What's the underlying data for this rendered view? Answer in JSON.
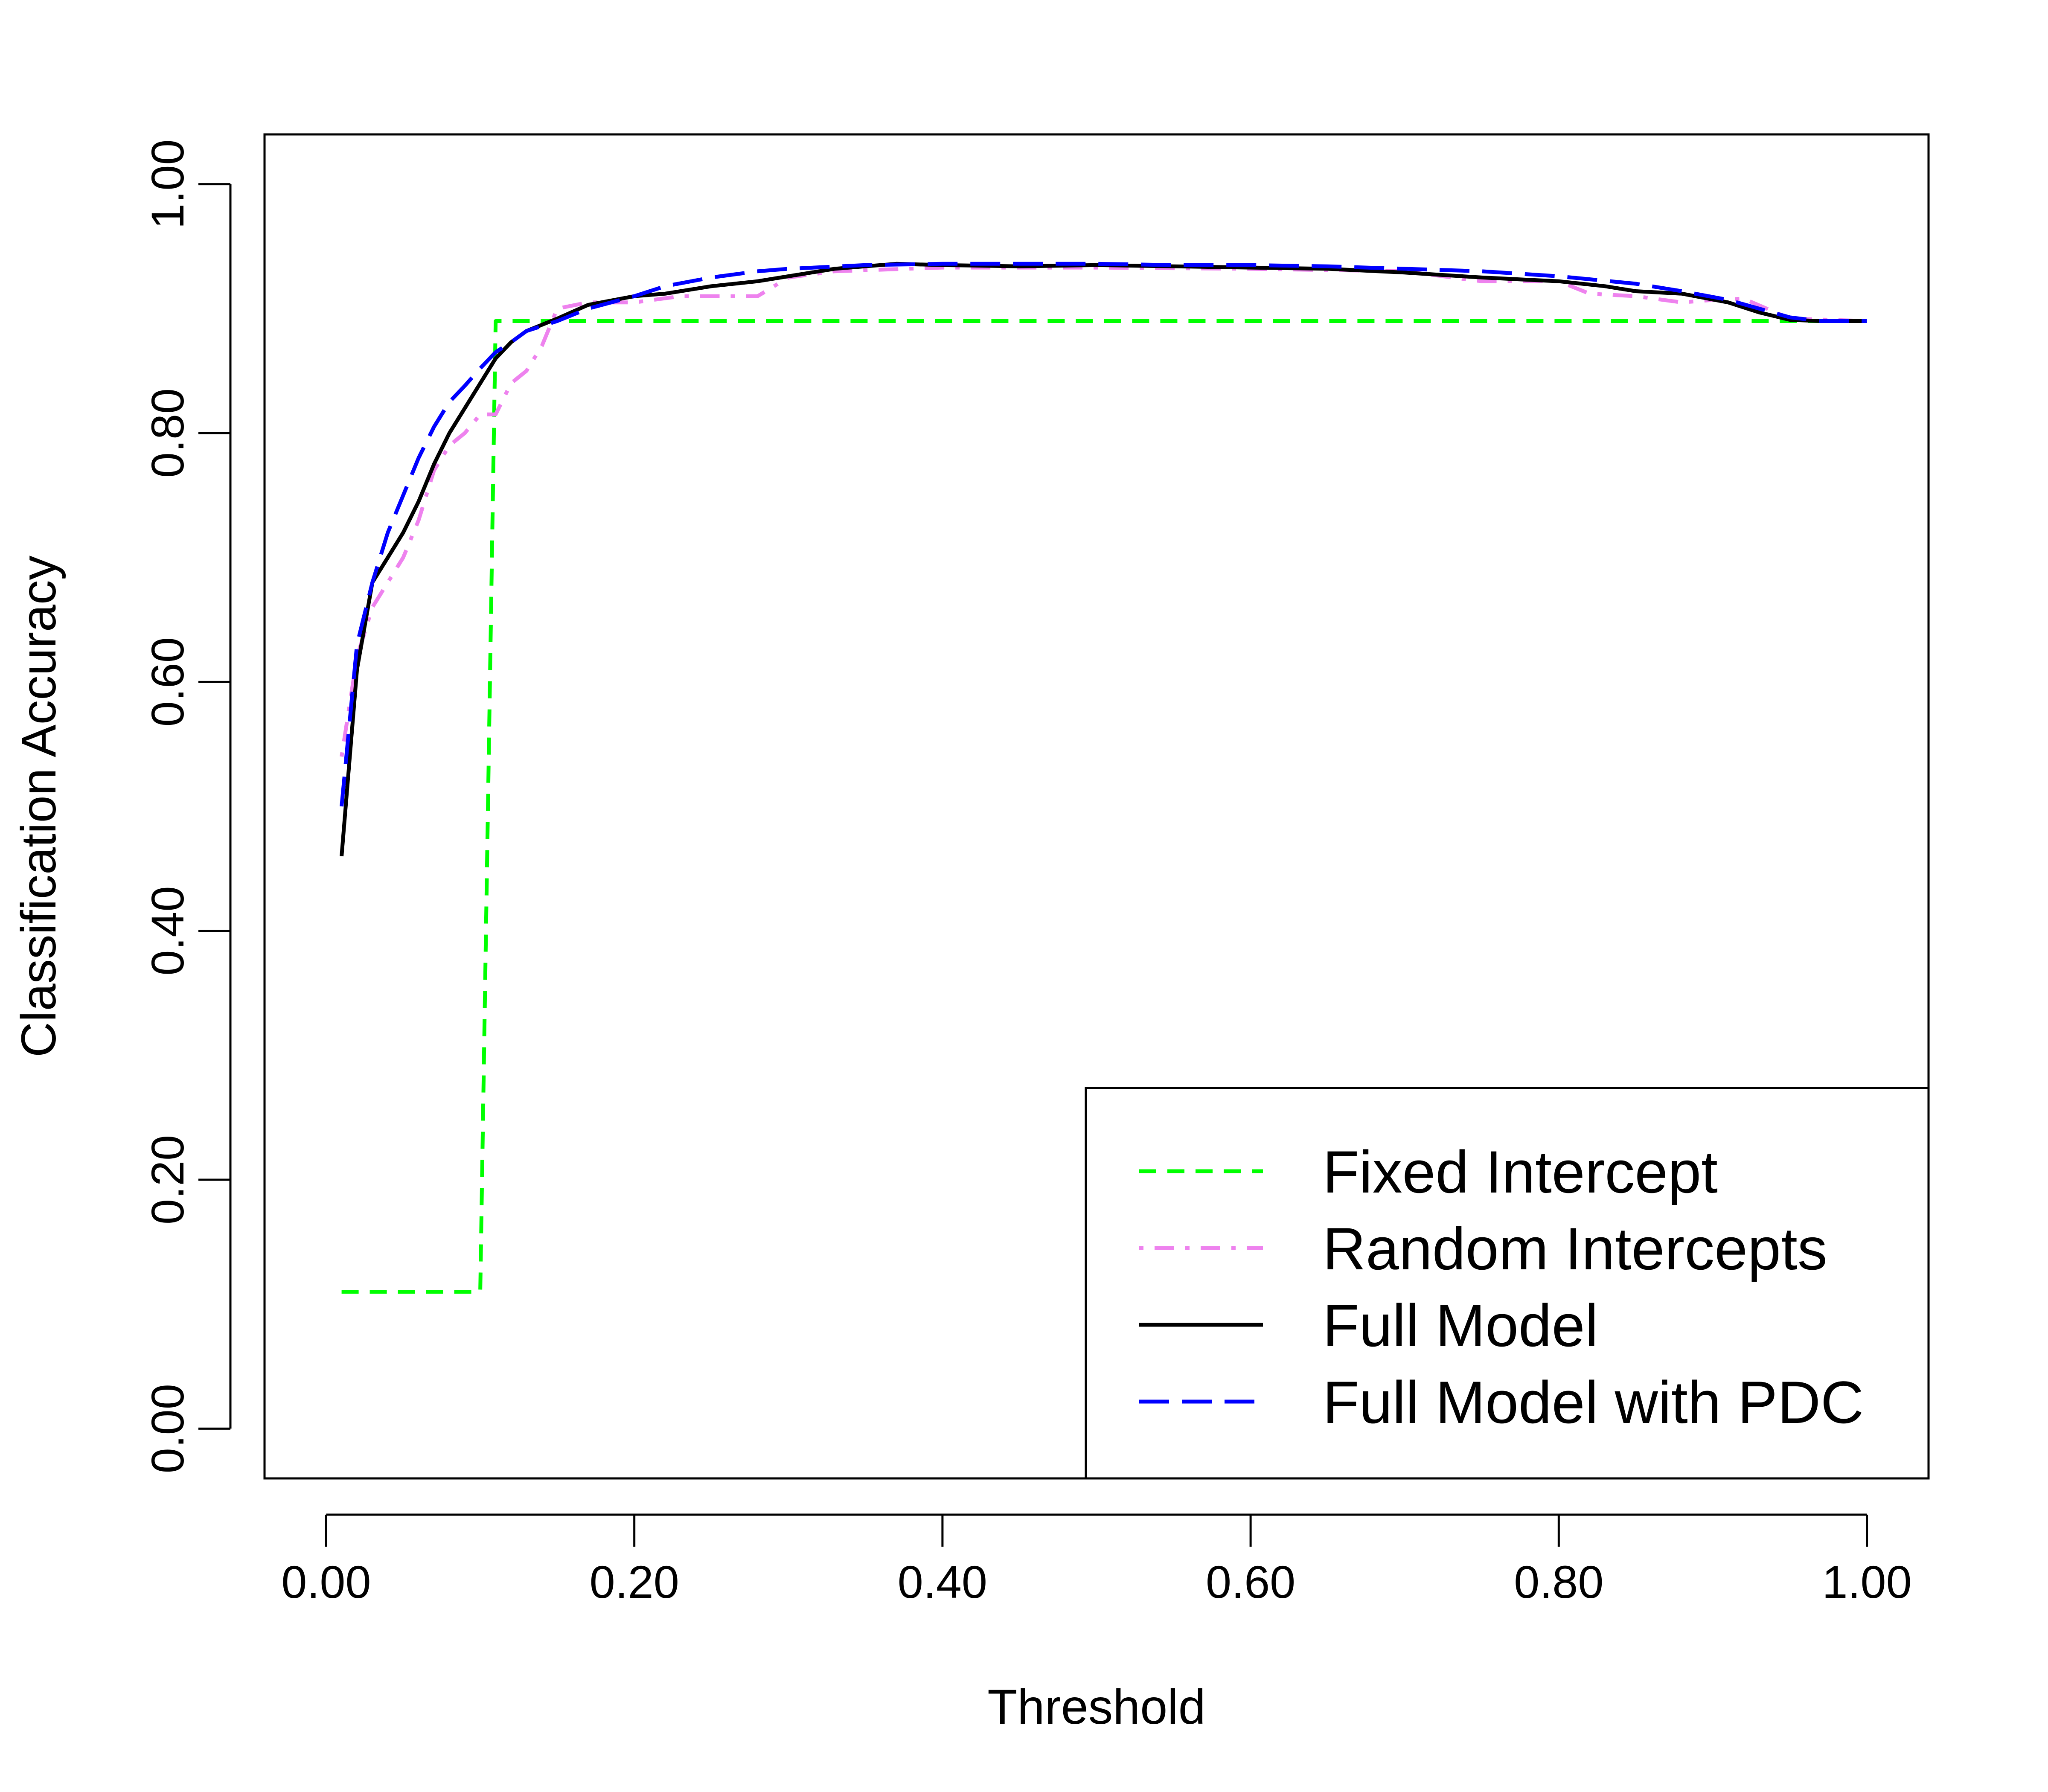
{
  "chart_data": {
    "type": "line",
    "title": "",
    "xlabel": "Threshold",
    "ylabel": "Classification Accuracy",
    "xlim": [
      -0.04,
      1.04
    ],
    "ylim": [
      -0.04,
      1.04
    ],
    "xticks": [
      0.0,
      0.2,
      0.4,
      0.6,
      0.8,
      1.0
    ],
    "xtick_labels": [
      "0.00",
      "0.20",
      "0.40",
      "0.60",
      "0.80",
      "1.00"
    ],
    "yticks": [
      0.0,
      0.2,
      0.4,
      0.6,
      0.8,
      1.0
    ],
    "ytick_labels": [
      "0.00",
      "0.20",
      "0.40",
      "0.60",
      "0.80",
      "1.00"
    ],
    "grid": false,
    "legend_position": "bottom-right",
    "series": [
      {
        "name": "Fixed Intercept",
        "color": "#00ff00",
        "dash": "dashed",
        "points": [
          [
            0.01,
            0.11
          ],
          [
            0.1,
            0.11
          ],
          [
            0.1,
            0.11
          ],
          [
            0.11,
            0.89
          ],
          [
            1.0,
            0.89
          ]
        ]
      },
      {
        "name": "Random Intercepts",
        "color": "#ee82ee",
        "dash": "dotdash",
        "points": [
          [
            0.01,
            0.54
          ],
          [
            0.02,
            0.62
          ],
          [
            0.03,
            0.66
          ],
          [
            0.04,
            0.68
          ],
          [
            0.05,
            0.7
          ],
          [
            0.06,
            0.73
          ],
          [
            0.07,
            0.77
          ],
          [
            0.08,
            0.79
          ],
          [
            0.09,
            0.8
          ],
          [
            0.1,
            0.815
          ],
          [
            0.11,
            0.815
          ],
          [
            0.12,
            0.84
          ],
          [
            0.13,
            0.85
          ],
          [
            0.14,
            0.87
          ],
          [
            0.15,
            0.9
          ],
          [
            0.17,
            0.905
          ],
          [
            0.2,
            0.905
          ],
          [
            0.23,
            0.91
          ],
          [
            0.28,
            0.91
          ],
          [
            0.3,
            0.925
          ],
          [
            0.33,
            0.93
          ],
          [
            0.4,
            0.933
          ],
          [
            0.5,
            0.933
          ],
          [
            0.6,
            0.932
          ],
          [
            0.7,
            0.93
          ],
          [
            0.75,
            0.922
          ],
          [
            0.8,
            0.922
          ],
          [
            0.82,
            0.912
          ],
          [
            0.85,
            0.91
          ],
          [
            0.88,
            0.905
          ],
          [
            0.9,
            0.907
          ],
          [
            0.92,
            0.908
          ],
          [
            0.95,
            0.892
          ],
          [
            1.0,
            0.89
          ]
        ]
      },
      {
        "name": "Full Model",
        "color": "#000000",
        "dash": "solid",
        "points": [
          [
            0.01,
            0.46
          ],
          [
            0.02,
            0.61
          ],
          [
            0.03,
            0.68
          ],
          [
            0.04,
            0.7
          ],
          [
            0.05,
            0.72
          ],
          [
            0.06,
            0.745
          ],
          [
            0.07,
            0.775
          ],
          [
            0.08,
            0.8
          ],
          [
            0.09,
            0.82
          ],
          [
            0.1,
            0.84
          ],
          [
            0.11,
            0.86
          ],
          [
            0.12,
            0.873
          ],
          [
            0.13,
            0.882
          ],
          [
            0.15,
            0.892
          ],
          [
            0.17,
            0.903
          ],
          [
            0.2,
            0.91
          ],
          [
            0.22,
            0.912
          ],
          [
            0.25,
            0.918
          ],
          [
            0.28,
            0.922
          ],
          [
            0.3,
            0.926
          ],
          [
            0.33,
            0.932
          ],
          [
            0.37,
            0.936
          ],
          [
            0.4,
            0.935
          ],
          [
            0.45,
            0.934
          ],
          [
            0.5,
            0.935
          ],
          [
            0.55,
            0.934
          ],
          [
            0.6,
            0.933
          ],
          [
            0.65,
            0.932
          ],
          [
            0.7,
            0.929
          ],
          [
            0.75,
            0.925
          ],
          [
            0.8,
            0.922
          ],
          [
            0.83,
            0.918
          ],
          [
            0.85,
            0.914
          ],
          [
            0.88,
            0.912
          ],
          [
            0.91,
            0.905
          ],
          [
            0.93,
            0.897
          ],
          [
            0.95,
            0.891
          ],
          [
            0.97,
            0.89
          ],
          [
            1.0,
            0.89
          ]
        ]
      },
      {
        "name": "Full Model with PDC",
        "color": "#0000ff",
        "dash": "longdash",
        "points": [
          [
            0.01,
            0.5
          ],
          [
            0.02,
            0.63
          ],
          [
            0.03,
            0.68
          ],
          [
            0.04,
            0.72
          ],
          [
            0.05,
            0.75
          ],
          [
            0.06,
            0.78
          ],
          [
            0.07,
            0.805
          ],
          [
            0.08,
            0.825
          ],
          [
            0.09,
            0.838
          ],
          [
            0.1,
            0.852
          ],
          [
            0.11,
            0.865
          ],
          [
            0.12,
            0.873
          ],
          [
            0.13,
            0.882
          ],
          [
            0.15,
            0.89
          ],
          [
            0.17,
            0.9
          ],
          [
            0.2,
            0.91
          ],
          [
            0.22,
            0.918
          ],
          [
            0.25,
            0.925
          ],
          [
            0.28,
            0.93
          ],
          [
            0.3,
            0.932
          ],
          [
            0.35,
            0.935
          ],
          [
            0.4,
            0.936
          ],
          [
            0.45,
            0.936
          ],
          [
            0.5,
            0.936
          ],
          [
            0.55,
            0.935
          ],
          [
            0.6,
            0.935
          ],
          [
            0.65,
            0.934
          ],
          [
            0.7,
            0.932
          ],
          [
            0.75,
            0.93
          ],
          [
            0.8,
            0.926
          ],
          [
            0.85,
            0.92
          ],
          [
            0.88,
            0.914
          ],
          [
            0.91,
            0.907
          ],
          [
            0.93,
            0.9
          ],
          [
            0.95,
            0.893
          ],
          [
            0.97,
            0.89
          ],
          [
            1.0,
            0.89
          ]
        ]
      }
    ]
  }
}
